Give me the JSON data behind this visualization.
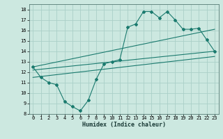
{
  "xlabel": "Humidex (Indice chaleur)",
  "bg_color": "#cce8e0",
  "grid_color": "#aacfc8",
  "line_color": "#1a7a6e",
  "xlim": [
    -0.5,
    23.5
  ],
  "ylim": [
    8,
    18.5
  ],
  "xticks": [
    0,
    1,
    2,
    3,
    4,
    5,
    6,
    7,
    8,
    9,
    10,
    11,
    12,
    13,
    14,
    15,
    16,
    17,
    18,
    19,
    20,
    21,
    22,
    23
  ],
  "yticks": [
    8,
    9,
    10,
    11,
    12,
    13,
    14,
    15,
    16,
    17,
    18
  ],
  "wavy_x": [
    0,
    1,
    2,
    3,
    4,
    5,
    6,
    7,
    8,
    9,
    10,
    11,
    12,
    13,
    14,
    15,
    16,
    17,
    18,
    19,
    20,
    21,
    22,
    23
  ],
  "wavy_y": [
    12.5,
    11.5,
    11.0,
    10.8,
    9.2,
    8.7,
    8.3,
    9.3,
    11.3,
    12.8,
    13.0,
    13.2,
    16.3,
    16.6,
    17.8,
    17.8,
    17.2,
    17.8,
    17.0,
    16.1,
    16.1,
    16.2,
    15.1,
    14.0
  ],
  "line1_x": [
    0,
    23
  ],
  "line1_y": [
    12.5,
    16.1
  ],
  "line2_x": [
    0,
    23
  ],
  "line2_y": [
    12.2,
    14.0
  ],
  "line3_x": [
    0,
    23
  ],
  "line3_y": [
    11.5,
    13.5
  ],
  "tick_fontsize": 5.0,
  "xlabel_fontsize": 6.0,
  "linewidth": 0.8,
  "markersize": 2.0
}
